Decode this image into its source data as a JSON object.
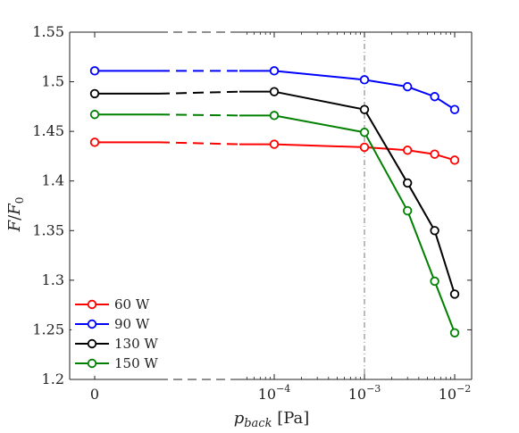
{
  "chart_data": {
    "type": "line",
    "x_tick_labels": [
      "0",
      "10^-4",
      "10^-3",
      "10^-2"
    ],
    "y_tick_labels": [
      "1.2",
      "1.25",
      "1.3",
      "1.35",
      "1.4",
      "1.45",
      "1.5",
      "1.55"
    ],
    "ylim": [
      1.2,
      1.55
    ],
    "x_scale": "log10 with a zero point, axis broken between 0 and 10^-4",
    "ylabel": "F/F_0",
    "xlabel": "p_back [Pa]",
    "reference_line_x": 0.001,
    "legend_position": "bottom-left",
    "series": [
      {
        "name": "60 W",
        "color": "#ff0000",
        "x": [
          0,
          0.0001,
          0.001,
          0.003,
          0.006,
          0.01
        ],
        "y": [
          1.439,
          1.437,
          1.434,
          1.431,
          1.427,
          1.421
        ]
      },
      {
        "name": "90 W",
        "color": "#0000ff",
        "x": [
          0,
          0.0001,
          0.001,
          0.003,
          0.006,
          0.01
        ],
        "y": [
          1.511,
          1.511,
          1.502,
          1.495,
          1.485,
          1.472
        ]
      },
      {
        "name": "130 W",
        "color": "#000000",
        "x": [
          0,
          0.0001,
          0.001,
          0.003,
          0.006,
          0.01
        ],
        "y": [
          1.488,
          1.49,
          1.472,
          1.398,
          1.35,
          1.286
        ]
      },
      {
        "name": "150 W",
        "color": "#008000",
        "x": [
          0,
          0.0001,
          0.001,
          0.003,
          0.006,
          0.01
        ],
        "y": [
          1.467,
          1.466,
          1.449,
          1.37,
          1.299,
          1.247
        ]
      }
    ]
  }
}
